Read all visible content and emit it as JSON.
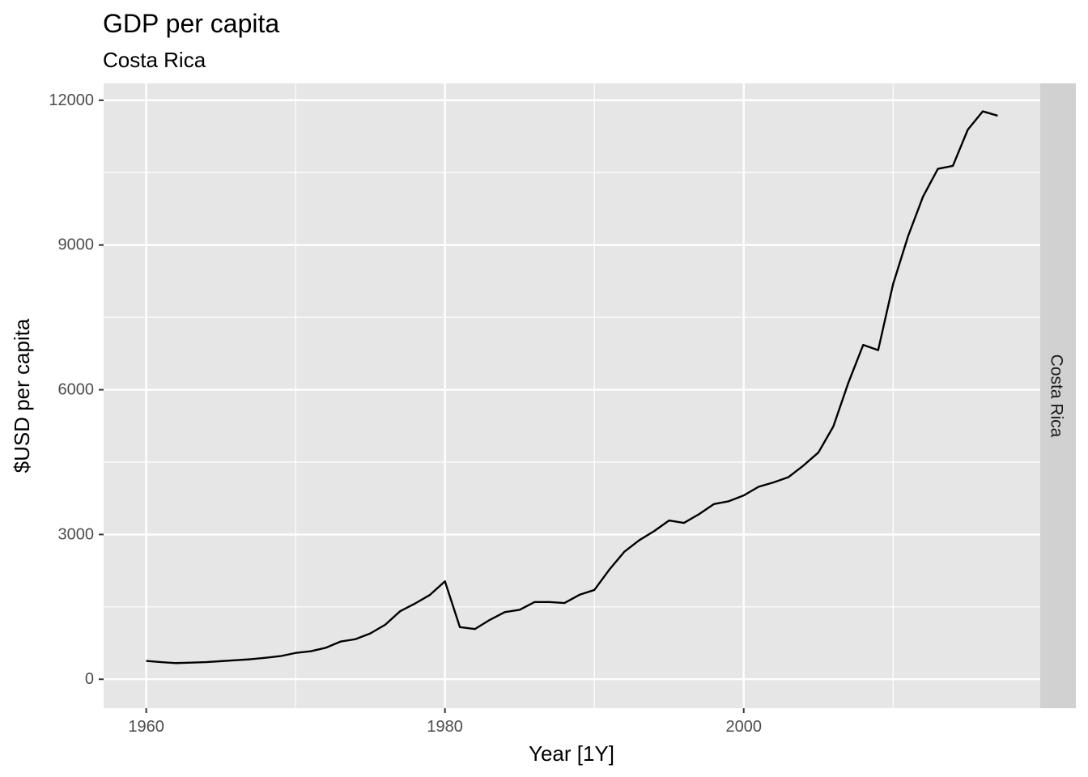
{
  "chart_data": {
    "type": "line",
    "title": "GDP per capita",
    "subtitle": "Costa Rica",
    "xlabel": "Year [1Y]",
    "ylabel": "$USD per capita",
    "facet_label": "Costa Rica",
    "xlim": [
      1957.15,
      2019.85
    ],
    "ylim": [
      -600,
      12350
    ],
    "x_ticks": [
      1960,
      1980,
      2000
    ],
    "x_minor_ticks": [
      1970,
      1990,
      2010
    ],
    "y_ticks": [
      0,
      3000,
      6000,
      9000,
      12000
    ],
    "y_minor_ticks": [
      1500,
      4500,
      7500,
      10500
    ],
    "grid": true,
    "panel_background": "#e6e6e6",
    "strip_background": "#d1d1d1",
    "line_color": "#000000",
    "series": [
      {
        "x": [
          1960,
          1961,
          1962,
          1963,
          1964,
          1965,
          1966,
          1967,
          1968,
          1969,
          1970,
          1971,
          1972,
          1973,
          1974,
          1975,
          1976,
          1977,
          1978,
          1979,
          1980,
          1981,
          1982,
          1983,
          1984,
          1985,
          1986,
          1987,
          1988,
          1989,
          1990,
          1991,
          1992,
          1993,
          1994,
          1995,
          1996,
          1997,
          1998,
          1999,
          2000,
          2001,
          2002,
          2003,
          2004,
          2005,
          2006,
          2007,
          2008,
          2009,
          2010,
          2011,
          2012,
          2013,
          2014,
          2015,
          2016,
          2017
        ],
        "values": [
          380,
          355,
          335,
          345,
          355,
          375,
          395,
          415,
          445,
          480,
          545,
          580,
          650,
          780,
          830,
          950,
          1130,
          1410,
          1570,
          1750,
          2030,
          1080,
          1040,
          1230,
          1390,
          1440,
          1600,
          1600,
          1580,
          1750,
          1850,
          2270,
          2640,
          2880,
          3070,
          3290,
          3240,
          3420,
          3630,
          3690,
          3810,
          3990,
          4080,
          4190,
          4430,
          4700,
          5240,
          6140,
          6930,
          6820,
          8190,
          9180,
          10000,
          10580,
          10640,
          11390,
          11770,
          11680
        ]
      }
    ]
  }
}
